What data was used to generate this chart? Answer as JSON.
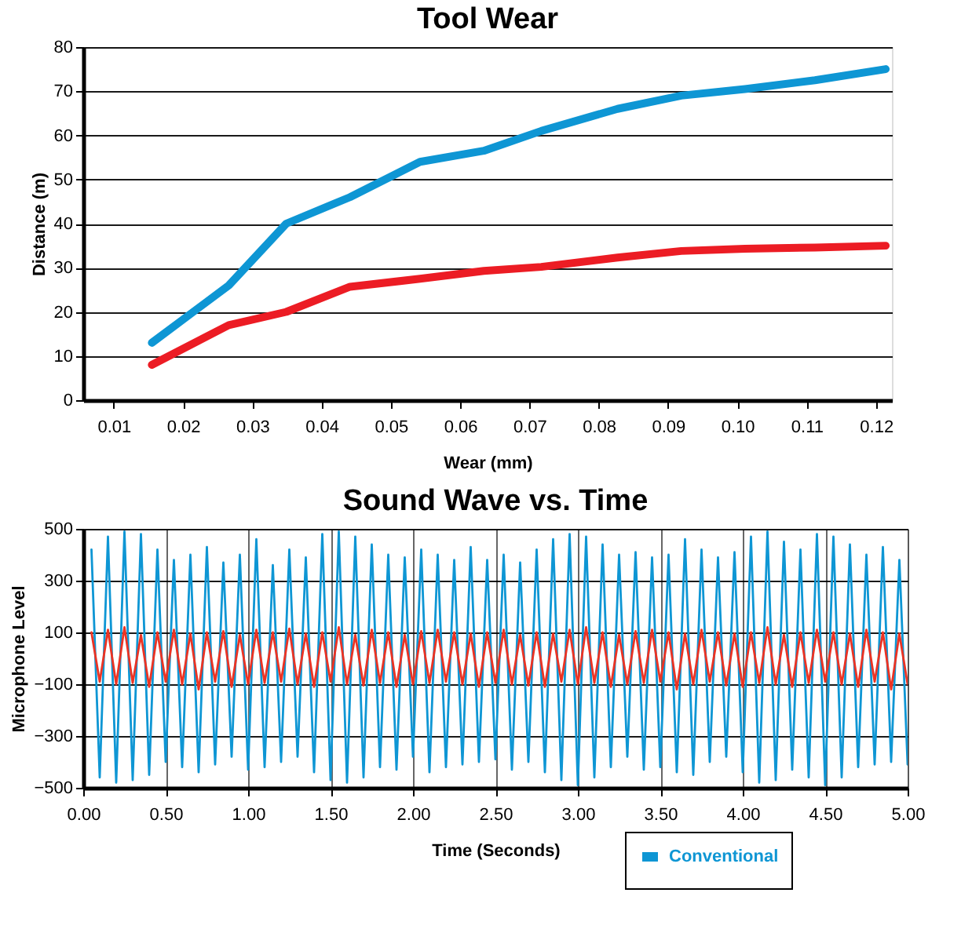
{
  "chart_data": [
    {
      "type": "line",
      "title": "Tool Wear",
      "xlabel": "Wear (mm)",
      "ylabel": "Distance (m)",
      "xlim": [
        0.0056,
        0.1223
      ],
      "xticks": [
        {
          "value": 0.01,
          "label": "0.01"
        },
        {
          "value": 0.02,
          "label": "0.02"
        },
        {
          "value": 0.03,
          "label": "0.03"
        },
        {
          "value": 0.04,
          "label": "0.04"
        },
        {
          "value": 0.05,
          "label": "0.05"
        },
        {
          "value": 0.06,
          "label": "0.06"
        },
        {
          "value": 0.07,
          "label": "0.07"
        },
        {
          "value": 0.08,
          "label": "0.08"
        },
        {
          "value": 0.09,
          "label": "0.09"
        },
        {
          "value": 0.1,
          "label": "0.10"
        },
        {
          "value": 0.11,
          "label": "0.11"
        },
        {
          "value": 0.12,
          "label": "0.12"
        }
      ],
      "ylim": [
        0,
        80
      ],
      "yticks": [
        0,
        10,
        20,
        30,
        40,
        50,
        60,
        70,
        80
      ],
      "grid": "y",
      "legend": false,
      "marker": "none",
      "line_style": "solid",
      "x": [
        0.0155,
        0.0266,
        0.0349,
        0.0441,
        0.0542,
        0.0634,
        0.0717,
        0.0827,
        0.0919,
        0.1011,
        0.1112,
        0.1214
      ],
      "series": [
        {
          "color": "#0e96d4",
          "values": [
            13,
            26,
            40,
            46,
            54,
            56.5,
            61,
            66,
            69,
            70.5,
            72.5,
            75
          ]
        },
        {
          "color": "#ec1c24",
          "values": [
            8,
            17,
            20,
            25.7,
            27.5,
            29.3,
            30.2,
            32.3,
            33.8,
            34.3,
            34.6,
            35
          ]
        }
      ]
    },
    {
      "type": "line",
      "title": "Sound Wave vs. Time",
      "xlabel": "Time (Seconds)",
      "ylabel": "Microphone Level",
      "xlim": [
        0,
        5
      ],
      "xticks": [
        {
          "value": 0,
          "label": "0.00"
        },
        {
          "value": 0.5,
          "label": "0.50"
        },
        {
          "value": 1,
          "label": "1.00"
        },
        {
          "value": 1.5,
          "label": "1.50"
        },
        {
          "value": 2,
          "label": "2.00"
        },
        {
          "value": 2.5,
          "label": "2.50"
        },
        {
          "value": 3,
          "label": "3.00"
        },
        {
          "value": 3.5,
          "label": "3.50"
        },
        {
          "value": 4,
          "label": "4.00"
        },
        {
          "value": 4.5,
          "label": "4.50"
        },
        {
          "value": 5,
          "label": "5.00"
        }
      ],
      "ylim": [
        -500,
        500
      ],
      "yticks": [
        -500,
        -300,
        -100,
        100,
        300,
        500
      ],
      "grid": true,
      "legend": "bottom right",
      "marker": "none",
      "line_style": "solid",
      "x": [
        0.05,
        0.1,
        0.15,
        0.2,
        0.25,
        0.3,
        0.35,
        0.4,
        0.45,
        0.5,
        0.55,
        0.6,
        0.65,
        0.7,
        0.75,
        0.8,
        0.85,
        0.9,
        0.95,
        1.0,
        1.05,
        1.1,
        1.15,
        1.2,
        1.25,
        1.3,
        1.35,
        1.4,
        1.45,
        1.5,
        1.55,
        1.6,
        1.65,
        1.7,
        1.75,
        1.8,
        1.85,
        1.9,
        1.95,
        2.0,
        2.05,
        2.1,
        2.15,
        2.2,
        2.25,
        2.3,
        2.35,
        2.4,
        2.45,
        2.5,
        2.55,
        2.6,
        2.65,
        2.7,
        2.75,
        2.8,
        2.85,
        2.9,
        2.95,
        3.0,
        3.05,
        3.1,
        3.15,
        3.2,
        3.25,
        3.3,
        3.35,
        3.4,
        3.45,
        3.5,
        3.55,
        3.6,
        3.65,
        3.7,
        3.75,
        3.8,
        3.85,
        3.9,
        3.95,
        4.0,
        4.05,
        4.1,
        4.15,
        4.2,
        4.25,
        4.3,
        4.35,
        4.4,
        4.45,
        4.5,
        4.55,
        4.6,
        4.65,
        4.7,
        4.75,
        4.8,
        4.85,
        4.9,
        4.95,
        5.0
      ],
      "series": [
        {
          "name": "Conventional",
          "color": "#0e96d4",
          "values": [
            420,
            -460,
            470,
            -480,
            490,
            -470,
            480,
            -450,
            420,
            -400,
            380,
            -420,
            400,
            -440,
            430,
            -410,
            370,
            -380,
            400,
            -430,
            460,
            -420,
            360,
            -400,
            420,
            -380,
            390,
            -440,
            480,
            -470,
            490,
            -480,
            470,
            -460,
            440,
            -420,
            400,
            -430,
            390,
            -380,
            420,
            -440,
            400,
            -420,
            380,
            -410,
            430,
            -400,
            380,
            -390,
            400,
            -430,
            370,
            -400,
            420,
            -440,
            460,
            -470,
            480,
            -490,
            470,
            -460,
            440,
            -420,
            400,
            -380,
            410,
            -430,
            390,
            -420,
            400,
            -440,
            460,
            -450,
            420,
            -400,
            390,
            -380,
            410,
            -440,
            470,
            -480,
            490,
            -470,
            450,
            -430,
            420,
            -460,
            480,
            -490,
            470,
            -460,
            440,
            -420,
            400,
            -410,
            430,
            -400,
            380,
            -410
          ]
        },
        {
          "color": "#ec3323",
          "values": [
            100,
            -90,
            110,
            -100,
            120,
            -95,
            90,
            -110,
            100,
            -90,
            110,
            -100,
            95,
            -120,
            100,
            -90,
            105,
            -110,
            90,
            -100,
            110,
            -95,
            100,
            -90,
            115,
            -100,
            95,
            -110,
            100,
            -90,
            120,
            -100,
            90,
            -105,
            110,
            -95,
            100,
            -110,
            90,
            -100,
            105,
            -95,
            110,
            -90,
            100,
            -100,
            95,
            -110,
            100,
            -95,
            110,
            -100,
            90,
            -105,
            100,
            -110,
            95,
            -90,
            110,
            -100,
            120,
            -95,
            100,
            -110,
            90,
            -100,
            105,
            -95,
            110,
            -90,
            100,
            -120,
            95,
            -100,
            110,
            -90,
            100,
            -105,
            95,
            -110,
            100,
            -95,
            120,
            -100,
            90,
            -110,
            100,
            -95,
            110,
            -90,
            100,
            -100,
            95,
            -110,
            110,
            -90,
            100,
            -120,
            95,
            -100
          ]
        }
      ]
    }
  ]
}
